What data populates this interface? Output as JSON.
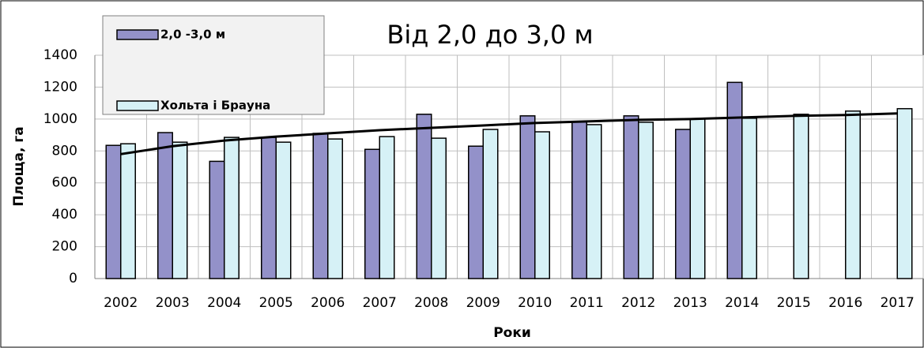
{
  "chart_data": {
    "type": "bar",
    "title": "Від 2,0 до 3,0 м",
    "x_label": "Роки",
    "y_label": "Площа, га",
    "categories": [
      "2002",
      "2003",
      "2004",
      "2005",
      "2006",
      "2007",
      "2008",
      "2009",
      "2010",
      "2011",
      "2012",
      "2013",
      "2014",
      "2015",
      "2016",
      "2017"
    ],
    "series": [
      {
        "name": "2,0 -3,0 м",
        "color": "#9391c9",
        "values": [
          835,
          915,
          735,
          885,
          910,
          810,
          1030,
          830,
          1020,
          985,
          1020,
          935,
          1230,
          null,
          null,
          null
        ]
      },
      {
        "name": "Хольта і Брауна",
        "color": "#d6f1f6",
        "values": [
          845,
          855,
          885,
          855,
          875,
          890,
          880,
          935,
          920,
          965,
          980,
          1000,
          1005,
          1030,
          1050,
          1065
        ]
      },
      {
        "type": "line",
        "color": "#000000",
        "values": [
          780,
          830,
          865,
          890,
          910,
          930,
          945,
          960,
          975,
          985,
          995,
          1000,
          1010,
          1020,
          1025,
          1035
        ]
      }
    ],
    "ylim": [
      0,
      1400
    ],
    "yticks": [
      0,
      200,
      400,
      600,
      800,
      1000,
      1200,
      1400
    ],
    "grid": true
  }
}
